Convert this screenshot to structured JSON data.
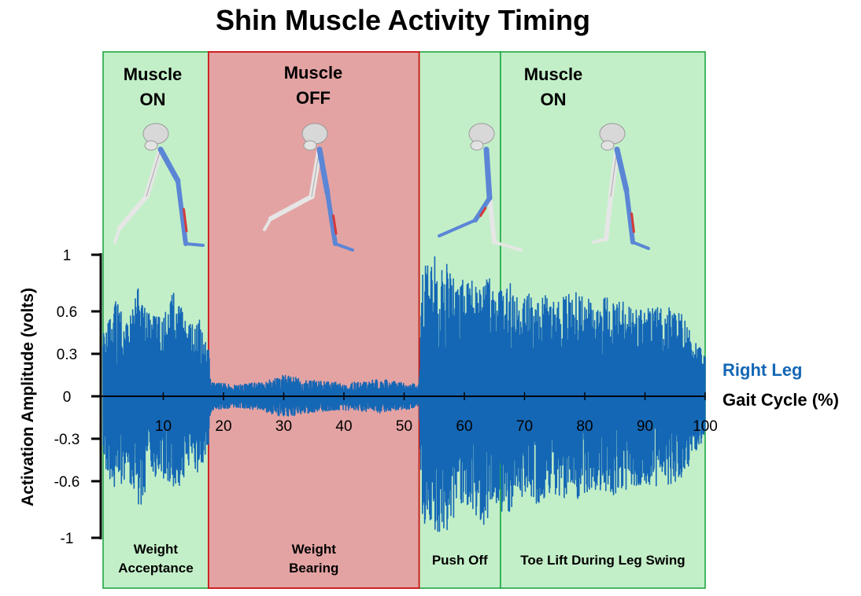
{
  "chart_data": {
    "type": "line",
    "title": "Shin Muscle Activity Timing",
    "xlabel": "Gait Cycle (%)",
    "ylabel": "Activation Amplitude (volts)",
    "xlim": [
      0,
      100
    ],
    "ylim": [
      -1,
      1
    ],
    "y_ticks": [
      1,
      0.6,
      0.3,
      0,
      -0.3,
      -0.6,
      -1
    ],
    "y_tick_labels": [
      "1",
      "0.6",
      "0.3",
      "0",
      "-0.3",
      "-0.6",
      "-1"
    ],
    "x_ticks": [
      10,
      20,
      30,
      40,
      50,
      60,
      70,
      80,
      90,
      100
    ],
    "x_tick_labels": [
      "10",
      "20",
      "30",
      "40",
      "50",
      "60",
      "70",
      "80",
      "90",
      "100"
    ],
    "grid": false,
    "legend": {
      "placement": "right",
      "entries": [
        "Right Leg"
      ]
    },
    "series": [
      {
        "name": "Right Leg",
        "color": "#1467b5",
        "signal": "EMG (oscillating)",
        "envelope_x": [
          0,
          2,
          4,
          6,
          8,
          10,
          12,
          14,
          16,
          17.5,
          18,
          22,
          26,
          30,
          34,
          38,
          42,
          46,
          50,
          52.5,
          53,
          55,
          57,
          59,
          61,
          63,
          65,
          67,
          69,
          72,
          75,
          78,
          81,
          84,
          87,
          90,
          93,
          96,
          99,
          100
        ],
        "envelope_y": [
          0.45,
          0.7,
          0.55,
          0.8,
          0.58,
          0.62,
          0.76,
          0.5,
          0.55,
          0.35,
          0.1,
          0.08,
          0.1,
          0.15,
          0.12,
          0.1,
          0.1,
          0.12,
          0.1,
          0.08,
          0.9,
          1.0,
          0.95,
          0.85,
          0.8,
          0.95,
          0.75,
          0.85,
          0.7,
          0.78,
          0.7,
          0.75,
          0.68,
          0.72,
          0.66,
          0.62,
          0.65,
          0.6,
          0.35,
          0.3
        ]
      }
    ],
    "phases": [
      {
        "state_line1": "Muscle",
        "state_line2": "ON",
        "label_line1": "Weight",
        "label_line2": "Acceptance",
        "x_start": 0,
        "x_end": 17.5,
        "status": "on"
      },
      {
        "state_line1": "Muscle",
        "state_line2": "OFF",
        "label_line1": "Weight",
        "label_line2": "Bearing",
        "x_start": 17.5,
        "x_end": 52.5,
        "status": "off"
      },
      {
        "state_line1": "Muscle",
        "state_line2": "ON",
        "label_line1": "Push Off",
        "label_line2": "",
        "x_start": 52.5,
        "x_end": 66,
        "status": "on"
      },
      {
        "state_line1": "",
        "state_line2": "",
        "label_line1": "Toe Lift During Leg Swing",
        "label_line2": "",
        "x_start": 66,
        "x_end": 100,
        "status": "on"
      }
    ],
    "leg_figures": [
      {
        "name": "leg-figure-weight-acceptance",
        "phase": 0
      },
      {
        "name": "leg-figure-weight-bearing",
        "phase": 1
      },
      {
        "name": "leg-figure-push-off",
        "phase": 2
      },
      {
        "name": "leg-figure-leg-swing",
        "phase": 3
      }
    ],
    "colors": {
      "on_fill": "#c3efc8",
      "on_border": "#1fa844",
      "off_fill": "#e4a3a3",
      "off_border": "#cc1a1a",
      "signal": "#1467b5",
      "legend_series": "#1467b5",
      "bone": "#e6e6e6",
      "bone_active": "#5b86d6",
      "muscle": "#d43a3a"
    }
  }
}
